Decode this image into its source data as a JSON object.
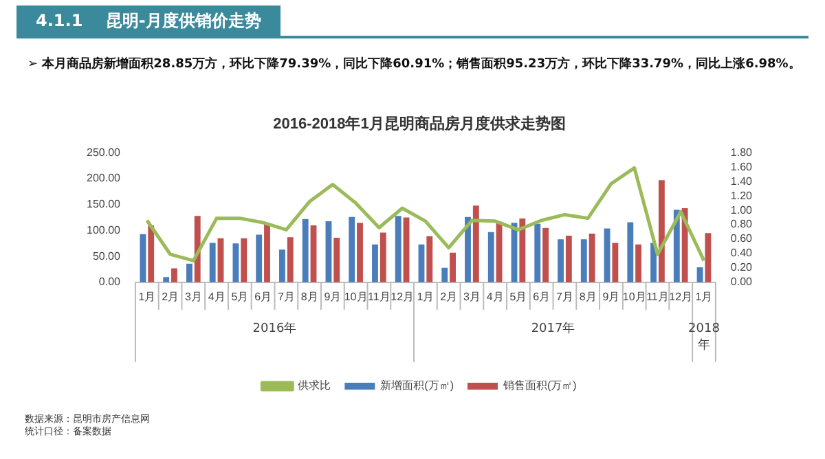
{
  "chart_data": {
    "type": "bar",
    "title": "2016-2018年1月昆明商品房月度供求走势图",
    "categories": [
      "1月",
      "2月",
      "3月",
      "4月",
      "5月",
      "6月",
      "7月",
      "8月",
      "9月",
      "10月",
      "11月",
      "12月",
      "1月",
      "2月",
      "3月",
      "4月",
      "5月",
      "6月",
      "7月",
      "8月",
      "9月",
      "10月",
      "11月",
      "12月",
      "1月"
    ],
    "series": [
      {
        "name": "新增面积(万㎡)",
        "color": "#4a7ebb",
        "values": [
          93,
          10,
          36,
          76,
          75,
          92,
          63,
          122,
          118,
          126,
          73,
          128,
          73,
          28,
          126,
          97,
          115,
          113,
          83,
          83,
          104,
          116,
          76,
          140,
          29
        ]
      },
      {
        "name": "销售面积(万㎡)",
        "color": "#c0504d",
        "values": [
          110,
          27,
          128,
          85,
          85,
          112,
          87,
          110,
          86,
          115,
          96,
          125,
          89,
          57,
          148,
          117,
          123,
          105,
          90,
          94,
          76,
          73,
          197,
          143,
          95
        ]
      },
      {
        "name": "供求比",
        "type": "line",
        "axis": "y2",
        "color": "#9bbb59",
        "values": [
          0.86,
          0.39,
          0.3,
          0.89,
          0.89,
          0.83,
          0.73,
          1.12,
          1.36,
          1.1,
          0.76,
          1.03,
          0.85,
          0.48,
          0.86,
          0.85,
          0.73,
          0.86,
          0.94,
          0.89,
          1.37,
          1.59,
          0.39,
          0.98,
          0.3
        ]
      }
    ],
    "ylim": [
      0,
      250
    ],
    "yticks": [
      {
        "value": 0,
        "label": "0.00"
      },
      {
        "value": 50,
        "label": "50.00"
      },
      {
        "value": 100,
        "label": "100.00"
      },
      {
        "value": 150,
        "label": "150.00"
      },
      {
        "value": 200,
        "label": "200.00"
      },
      {
        "value": 250,
        "label": "250.00"
      }
    ],
    "y2lim": [
      0,
      1.8
    ],
    "y2ticks": [
      {
        "value": 0,
        "label": "0.00"
      },
      {
        "value": 0.2,
        "label": "0.20"
      },
      {
        "value": 0.4,
        "label": "0.40"
      },
      {
        "value": 0.6,
        "label": "0.60"
      },
      {
        "value": 0.8,
        "label": "0.80"
      },
      {
        "value": 1,
        "label": "1.00"
      },
      {
        "value": 1.2,
        "label": "1.20"
      },
      {
        "value": 1.4,
        "label": "1.40"
      },
      {
        "value": 1.6,
        "label": "1.60"
      },
      {
        "value": 1.8,
        "label": "1.80"
      }
    ],
    "grid": false,
    "legend": "bottom",
    "marker": "none",
    "line_style": "solid",
    "annotations": [
      "4.1.1    昆明-月度供销价走势",
      "➢  本月商品房新增面积28.85万方，环比下降79.39%，同比下降60.91%；销售面积95.23万方，环比下降33.79%，同比上涨6.98%。",
      "2016年",
      "2017年",
      "2018年",
      "数据来源：昆明市房产信息网",
      "统计口径：备案数据"
    ]
  }
}
